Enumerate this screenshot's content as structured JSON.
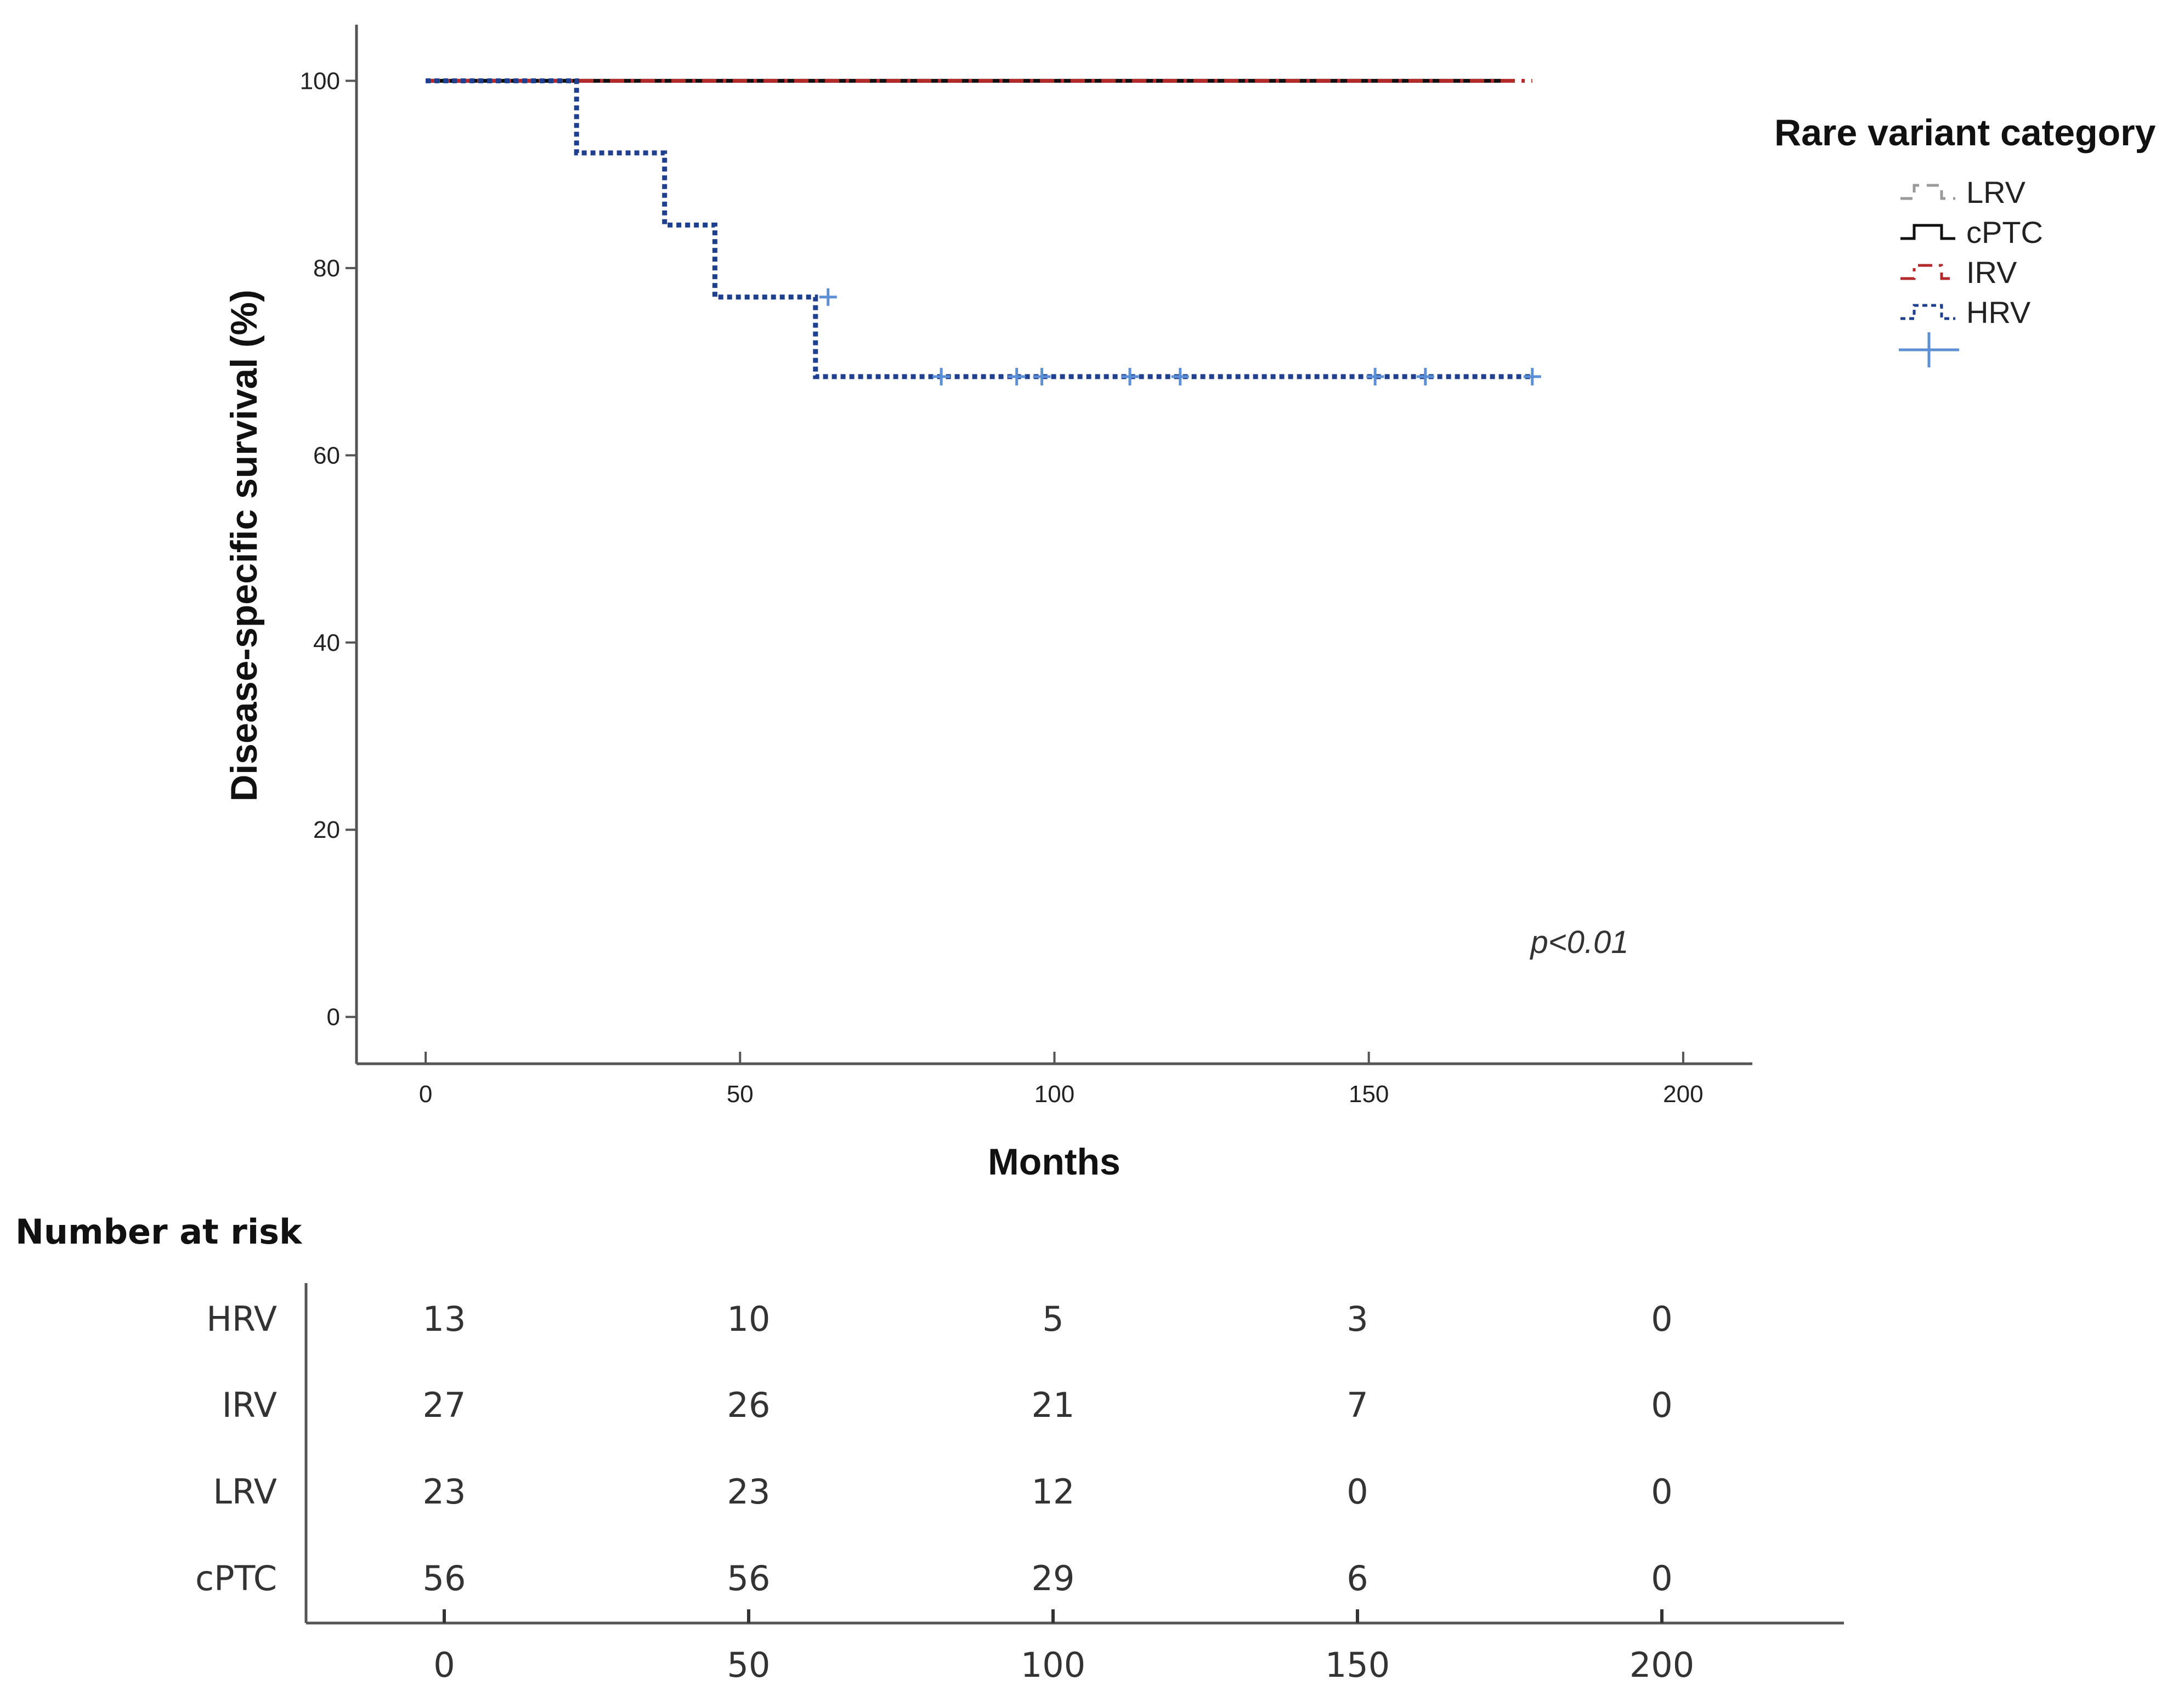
{
  "chart_data": {
    "type": "line",
    "subtype": "kaplan-meier",
    "ylabel": "Disease-specific survival (%)",
    "xlabel": "Months",
    "xlim": [
      -11,
      211
    ],
    "ylim": [
      -5,
      106
    ],
    "x_ticks": [
      0,
      50,
      100,
      150,
      200
    ],
    "y_ticks": [
      0,
      20,
      40,
      60,
      80,
      100
    ],
    "annotation": "p<0.01",
    "legend": {
      "title": "Rare variant category",
      "position": "top-right",
      "entries": [
        "LRV",
        "cPTC",
        "IRV",
        "HRV"
      ]
    },
    "series": [
      {
        "name": "LRV",
        "color": "#999999",
        "style": "dashed",
        "steps": [
          [
            0,
            100
          ],
          [
            171,
            100
          ]
        ],
        "censored": []
      },
      {
        "name": "cPTC",
        "color": "#111111",
        "style": "solid",
        "steps": [
          [
            0,
            100
          ],
          [
            171,
            100
          ]
        ],
        "censored": []
      },
      {
        "name": "IRV",
        "color": "#b22a2a",
        "style": "dashdot",
        "steps": [
          [
            0,
            100
          ],
          [
            176,
            100
          ]
        ],
        "censored": []
      },
      {
        "name": "HRV",
        "color": "#1f3f8f",
        "style": "dotted",
        "steps": [
          [
            0,
            100
          ],
          [
            24,
            92.3
          ],
          [
            38,
            84.6
          ],
          [
            46,
            76.9
          ],
          [
            62,
            68.4
          ],
          [
            176,
            68.4
          ]
        ],
        "censored": [
          [
            64,
            76.9
          ],
          [
            82,
            68.4
          ],
          [
            94,
            68.4
          ],
          [
            98,
            68.4
          ],
          [
            112,
            68.4
          ],
          [
            120,
            68.4
          ],
          [
            151,
            68.4
          ],
          [
            159,
            68.4
          ],
          [
            176,
            68.4
          ]
        ]
      }
    ],
    "censor_color": "#5b8fd6",
    "risk_table": {
      "title": "Number at risk",
      "times": [
        0,
        50,
        100,
        150,
        200
      ],
      "rows": [
        {
          "label": "HRV",
          "values": [
            13,
            10,
            5,
            3,
            0
          ]
        },
        {
          "label": "IRV",
          "values": [
            27,
            26,
            21,
            7,
            0
          ]
        },
        {
          "label": "LRV",
          "values": [
            23,
            23,
            12,
            0,
            0
          ]
        },
        {
          "label": "cPTC",
          "values": [
            56,
            56,
            29,
            6,
            0
          ]
        }
      ]
    }
  }
}
